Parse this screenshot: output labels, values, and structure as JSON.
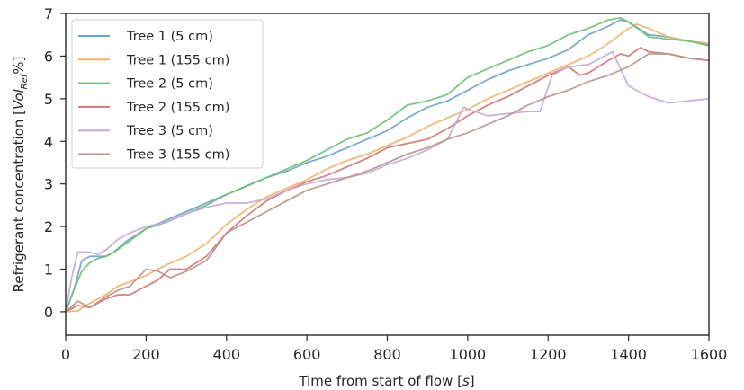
{
  "chart_data": {
    "type": "line",
    "title": "",
    "xlabel_prefix": "Time from start of flow [",
    "xlabel_unit": "s",
    "xlabel_suffix": "]",
    "ylabel_prefix": "Refrigerant concentration [",
    "ylabel_unit": "Vol",
    "ylabel_unit_sub": "Ref",
    "ylabel_suffix": "%]",
    "xlim": [
      0,
      1600
    ],
    "ylim": [
      -0.55,
      7
    ],
    "x_ticks": [
      0,
      200,
      400,
      600,
      800,
      1000,
      1200,
      1400,
      1600
    ],
    "y_ticks": [
      0,
      1,
      2,
      3,
      4,
      5,
      6,
      7
    ],
    "grid": false,
    "legend_position": "upper-left",
    "series": [
      {
        "name": "Tree 1 (5 cm)",
        "color": "#6fa3c8",
        "points": [
          [
            0,
            0
          ],
          [
            20,
            0.5
          ],
          [
            40,
            1.2
          ],
          [
            60,
            1.3
          ],
          [
            80,
            1.3
          ],
          [
            100,
            1.3
          ],
          [
            120,
            1.4
          ],
          [
            150,
            1.65
          ],
          [
            200,
            1.95
          ],
          [
            250,
            2.15
          ],
          [
            300,
            2.35
          ],
          [
            350,
            2.55
          ],
          [
            400,
            2.75
          ],
          [
            450,
            2.95
          ],
          [
            500,
            3.15
          ],
          [
            550,
            3.3
          ],
          [
            600,
            3.5
          ],
          [
            650,
            3.65
          ],
          [
            700,
            3.85
          ],
          [
            750,
            4.05
          ],
          [
            800,
            4.25
          ],
          [
            850,
            4.55
          ],
          [
            900,
            4.8
          ],
          [
            950,
            4.95
          ],
          [
            1000,
            5.2
          ],
          [
            1050,
            5.45
          ],
          [
            1100,
            5.65
          ],
          [
            1150,
            5.8
          ],
          [
            1200,
            5.95
          ],
          [
            1250,
            6.15
          ],
          [
            1300,
            6.5
          ],
          [
            1350,
            6.7
          ],
          [
            1380,
            6.85
          ],
          [
            1400,
            6.8
          ],
          [
            1450,
            6.5
          ],
          [
            1500,
            6.45
          ],
          [
            1550,
            6.35
          ],
          [
            1600,
            6.25
          ]
        ]
      },
      {
        "name": "Tree 1 (155 cm)",
        "color": "#f0b36b",
        "points": [
          [
            0,
            0
          ],
          [
            30,
            0.02
          ],
          [
            60,
            0.2
          ],
          [
            100,
            0.4
          ],
          [
            130,
            0.6
          ],
          [
            160,
            0.7
          ],
          [
            200,
            0.85
          ],
          [
            250,
            1.1
          ],
          [
            300,
            1.3
          ],
          [
            350,
            1.6
          ],
          [
            400,
            2.05
          ],
          [
            450,
            2.4
          ],
          [
            500,
            2.7
          ],
          [
            550,
            2.9
          ],
          [
            600,
            3.1
          ],
          [
            650,
            3.35
          ],
          [
            700,
            3.55
          ],
          [
            750,
            3.7
          ],
          [
            800,
            3.9
          ],
          [
            850,
            4.1
          ],
          [
            900,
            4.35
          ],
          [
            950,
            4.55
          ],
          [
            1000,
            4.75
          ],
          [
            1050,
            5.0
          ],
          [
            1100,
            5.2
          ],
          [
            1150,
            5.4
          ],
          [
            1200,
            5.6
          ],
          [
            1250,
            5.8
          ],
          [
            1300,
            6.0
          ],
          [
            1350,
            6.3
          ],
          [
            1400,
            6.65
          ],
          [
            1420,
            6.75
          ],
          [
            1450,
            6.65
          ],
          [
            1500,
            6.45
          ],
          [
            1550,
            6.35
          ],
          [
            1600,
            6.3
          ]
        ]
      },
      {
        "name": "Tree 2 (5 cm)",
        "color": "#6fbf72",
        "points": [
          [
            0,
            0
          ],
          [
            20,
            0.5
          ],
          [
            40,
            0.95
          ],
          [
            60,
            1.15
          ],
          [
            80,
            1.25
          ],
          [
            100,
            1.3
          ],
          [
            120,
            1.4
          ],
          [
            150,
            1.6
          ],
          [
            200,
            1.95
          ],
          [
            250,
            2.1
          ],
          [
            300,
            2.3
          ],
          [
            350,
            2.5
          ],
          [
            400,
            2.75
          ],
          [
            450,
            2.95
          ],
          [
            500,
            3.15
          ],
          [
            550,
            3.35
          ],
          [
            600,
            3.55
          ],
          [
            650,
            3.8
          ],
          [
            700,
            4.05
          ],
          [
            750,
            4.2
          ],
          [
            800,
            4.5
          ],
          [
            850,
            4.85
          ],
          [
            900,
            4.95
          ],
          [
            950,
            5.1
          ],
          [
            1000,
            5.5
          ],
          [
            1050,
            5.7
          ],
          [
            1100,
            5.9
          ],
          [
            1150,
            6.1
          ],
          [
            1200,
            6.25
          ],
          [
            1250,
            6.5
          ],
          [
            1300,
            6.65
          ],
          [
            1350,
            6.85
          ],
          [
            1380,
            6.9
          ],
          [
            1400,
            6.8
          ],
          [
            1430,
            6.6
          ],
          [
            1450,
            6.45
          ],
          [
            1500,
            6.4
          ],
          [
            1550,
            6.35
          ],
          [
            1600,
            6.25
          ]
        ]
      },
      {
        "name": "Tree 2 (155 cm)",
        "color": "#d17773",
        "points": [
          [
            0,
            0
          ],
          [
            30,
            0.15
          ],
          [
            60,
            0.1
          ],
          [
            100,
            0.3
          ],
          [
            130,
            0.4
          ],
          [
            160,
            0.4
          ],
          [
            200,
            0.6
          ],
          [
            230,
            0.75
          ],
          [
            260,
            1.0
          ],
          [
            300,
            1.0
          ],
          [
            350,
            1.3
          ],
          [
            400,
            1.85
          ],
          [
            450,
            2.25
          ],
          [
            500,
            2.6
          ],
          [
            550,
            2.85
          ],
          [
            600,
            3.05
          ],
          [
            650,
            3.2
          ],
          [
            700,
            3.4
          ],
          [
            750,
            3.6
          ],
          [
            800,
            3.85
          ],
          [
            850,
            3.95
          ],
          [
            900,
            4.05
          ],
          [
            950,
            4.3
          ],
          [
            1000,
            4.6
          ],
          [
            1050,
            4.85
          ],
          [
            1100,
            5.05
          ],
          [
            1150,
            5.3
          ],
          [
            1200,
            5.55
          ],
          [
            1250,
            5.75
          ],
          [
            1280,
            5.55
          ],
          [
            1300,
            5.6
          ],
          [
            1350,
            5.9
          ],
          [
            1380,
            6.05
          ],
          [
            1400,
            6.0
          ],
          [
            1430,
            6.2
          ],
          [
            1450,
            6.1
          ],
          [
            1500,
            6.05
          ],
          [
            1550,
            5.95
          ],
          [
            1600,
            5.9
          ]
        ]
      },
      {
        "name": "Tree 3 (5 cm)",
        "color": "#c7a8dc",
        "points": [
          [
            0,
            0
          ],
          [
            15,
            0.8
          ],
          [
            30,
            1.4
          ],
          [
            60,
            1.4
          ],
          [
            80,
            1.35
          ],
          [
            100,
            1.45
          ],
          [
            130,
            1.7
          ],
          [
            160,
            1.85
          ],
          [
            200,
            2.0
          ],
          [
            250,
            2.1
          ],
          [
            300,
            2.3
          ],
          [
            350,
            2.45
          ],
          [
            400,
            2.55
          ],
          [
            450,
            2.55
          ],
          [
            500,
            2.65
          ],
          [
            550,
            2.85
          ],
          [
            600,
            3.0
          ],
          [
            650,
            3.1
          ],
          [
            700,
            3.15
          ],
          [
            750,
            3.25
          ],
          [
            800,
            3.45
          ],
          [
            850,
            3.6
          ],
          [
            900,
            3.8
          ],
          [
            950,
            4.05
          ],
          [
            990,
            4.8
          ],
          [
            1000,
            4.75
          ],
          [
            1050,
            4.6
          ],
          [
            1100,
            4.65
          ],
          [
            1150,
            4.7
          ],
          [
            1180,
            4.7
          ],
          [
            1210,
            5.55
          ],
          [
            1250,
            5.75
          ],
          [
            1300,
            5.8
          ],
          [
            1340,
            6.0
          ],
          [
            1360,
            6.1
          ],
          [
            1380,
            5.7
          ],
          [
            1400,
            5.3
          ],
          [
            1450,
            5.05
          ],
          [
            1500,
            4.9
          ],
          [
            1550,
            4.95
          ],
          [
            1600,
            5.0
          ]
        ]
      },
      {
        "name": "Tree 3 (155 cm)",
        "color": "#b8958c",
        "points": [
          [
            0,
            0
          ],
          [
            30,
            0.25
          ],
          [
            60,
            0.1
          ],
          [
            100,
            0.35
          ],
          [
            130,
            0.5
          ],
          [
            160,
            0.6
          ],
          [
            200,
            1.0
          ],
          [
            230,
            0.95
          ],
          [
            260,
            0.8
          ],
          [
            300,
            0.95
          ],
          [
            350,
            1.2
          ],
          [
            400,
            1.85
          ],
          [
            450,
            2.1
          ],
          [
            500,
            2.35
          ],
          [
            550,
            2.6
          ],
          [
            600,
            2.85
          ],
          [
            650,
            3.0
          ],
          [
            700,
            3.15
          ],
          [
            750,
            3.3
          ],
          [
            800,
            3.5
          ],
          [
            850,
            3.7
          ],
          [
            900,
            3.85
          ],
          [
            950,
            4.05
          ],
          [
            1000,
            4.2
          ],
          [
            1050,
            4.4
          ],
          [
            1100,
            4.6
          ],
          [
            1150,
            4.85
          ],
          [
            1200,
            5.05
          ],
          [
            1250,
            5.2
          ],
          [
            1300,
            5.4
          ],
          [
            1350,
            5.55
          ],
          [
            1400,
            5.75
          ],
          [
            1450,
            6.05
          ],
          [
            1500,
            6.05
          ],
          [
            1550,
            5.95
          ],
          [
            1600,
            5.9
          ]
        ]
      }
    ]
  }
}
